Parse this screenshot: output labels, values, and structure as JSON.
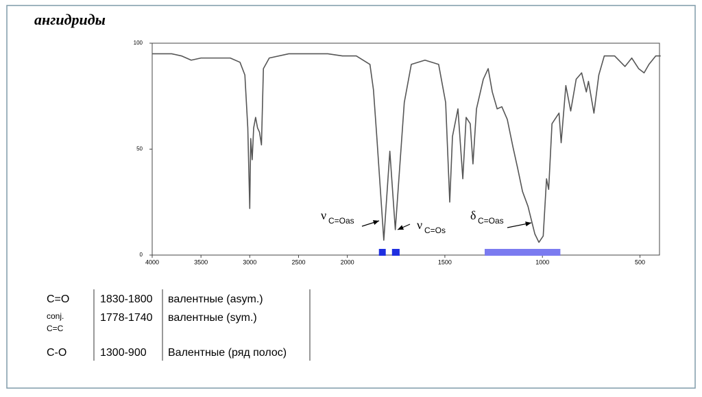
{
  "title": "ангидриды",
  "chart_data": {
    "type": "line",
    "x": [
      4000,
      3800,
      3700,
      3600,
      3500,
      3400,
      3200,
      3100,
      3050,
      3020,
      3000,
      2990,
      2975,
      2960,
      2940,
      2920,
      2900,
      2880,
      2860,
      2800,
      2600,
      2400,
      2200,
      2050,
      1954,
      1884,
      1866,
      1849,
      1813,
      1782,
      1754,
      1708,
      1672,
      1602,
      1532,
      1496,
      1475,
      1461,
      1433,
      1408,
      1391,
      1370,
      1356,
      1338,
      1303,
      1278,
      1257,
      1232,
      1208,
      1180,
      1151,
      1127,
      1102,
      1074,
      1039,
      1018,
      996,
      979,
      968,
      951,
      915,
      904,
      880,
      855,
      827,
      799,
      775,
      764,
      736,
      711,
      683,
      630,
      577,
      542,
      507,
      479,
      454,
      419,
      394
    ],
    "series": [
      {
        "color": "#555555",
        "values": [
          95,
          95,
          94,
          92,
          93,
          93,
          93,
          91,
          85,
          60,
          22,
          55,
          45,
          60,
          65,
          60,
          58,
          52,
          88,
          93,
          95,
          95,
          95,
          94,
          94,
          90,
          78,
          56,
          7,
          49,
          12,
          72,
          90,
          92,
          90,
          72,
          25,
          56,
          69,
          36,
          65,
          62,
          43,
          69,
          83,
          88,
          77,
          69,
          70,
          64,
          51,
          41,
          30,
          23,
          10,
          6,
          9,
          36,
          31,
          62,
          67,
          53,
          80,
          68,
          83,
          86,
          77,
          82,
          67,
          85,
          94,
          94,
          89,
          93,
          88,
          86,
          90,
          94,
          94
        ]
      }
    ],
    "xlim": [
      4000,
      400
    ],
    "x_break": 2000,
    "xticks": [
      4000,
      3500,
      3000,
      2500,
      2000,
      1500,
      1000,
      500
    ],
    "ylim": [
      0,
      100
    ],
    "yticks": [
      0,
      50,
      100
    ],
    "bands": [
      {
        "from": 1838,
        "to": 1803,
        "color": "#1f2fe0"
      },
      {
        "from": 1771,
        "to": 1732,
        "color": "#1f2fe0"
      },
      {
        "from": 1296,
        "to": 908,
        "color": "#7b7bf0"
      }
    ],
    "annotations": [
      {
        "symbol": "ν",
        "sub": "C=Oas"
      },
      {
        "symbol": "ν",
        "sub": "C=Os"
      },
      {
        "symbol": "δ",
        "sub": "C=Oas"
      }
    ]
  },
  "table": {
    "rows": [
      [
        "C=O",
        "1830-1800",
        "валентные (asym.)"
      ],
      [
        "conj.\nC=C",
        "1778-1740",
        "валентные (sym.)"
      ],
      [
        "C-O",
        "1300-900",
        "Валентные (ряд полос)"
      ]
    ]
  }
}
